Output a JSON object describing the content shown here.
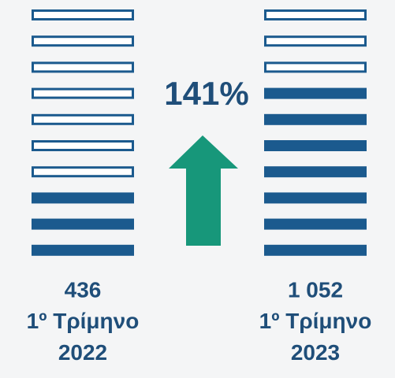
{
  "chart_data": {
    "type": "pictograph",
    "categories": [
      "1º Τρίμηνο 2022",
      "1º Τρίμηνο 2023"
    ],
    "values": [
      436,
      1052
    ],
    "value_labels": [
      "436",
      "1 052"
    ],
    "icons": {
      "total": 10,
      "filled": [
        3,
        7
      ]
    },
    "color": "#1b5a8e",
    "arrow_color": "#17977a",
    "annotation": "141%"
  }
}
